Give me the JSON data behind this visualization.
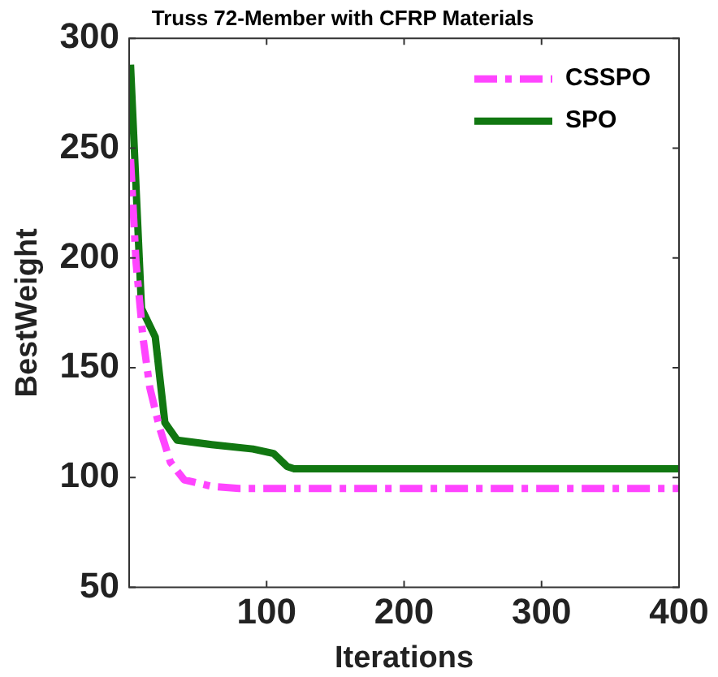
{
  "chart_data": {
    "type": "line",
    "title": "Truss 72-Member with CFRP Materials",
    "xlabel": "Iterations",
    "ylabel": "BestWeight",
    "xlim": [
      0,
      400
    ],
    "xticks": [
      100,
      200,
      300,
      400
    ],
    "ylim": [
      50,
      300
    ],
    "yticks": [
      50,
      100,
      150,
      200,
      250,
      300
    ],
    "grid": false,
    "legend": "top right",
    "marker": "none",
    "series": [
      {
        "name": "CSSPO",
        "color": "#ff44ff",
        "line_style": "dashed",
        "x": [
          1,
          5,
          10,
          15,
          22,
          30,
          40,
          60,
          80,
          400
        ],
        "values": [
          245,
          198,
          164,
          141,
          123,
          107,
          99,
          96,
          95,
          95
        ]
      },
      {
        "name": "SPO",
        "color": "#117711",
        "line_style": "solid",
        "x": [
          1,
          9,
          19,
          26,
          35,
          60,
          90,
          105,
          115,
          120,
          400
        ],
        "values": [
          288,
          177,
          164,
          125,
          117,
          115,
          113,
          111,
          105,
          104,
          104
        ]
      }
    ]
  }
}
